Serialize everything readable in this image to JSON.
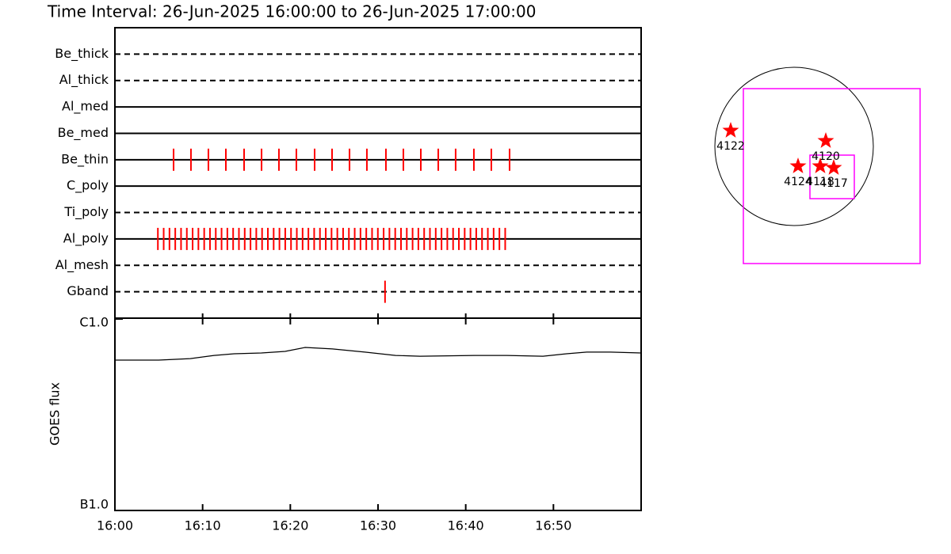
{
  "chart_data": [
    {
      "type": "timeline",
      "title": "Time Interval: 26-Jun-2025 16:00:00 to 26-Jun-2025 17:00:00",
      "xlim": [
        0,
        60
      ],
      "series": [
        {
          "name": "Be_thick",
          "line": "dashed",
          "color": "#ff0000",
          "x": []
        },
        {
          "name": "Al_thick",
          "line": "dashed",
          "color": "#ff0000",
          "x": []
        },
        {
          "name": "Al_med",
          "line": "solid",
          "color": "#ff0000",
          "x": []
        },
        {
          "name": "Be_med",
          "line": "solid",
          "color": "#ff0000",
          "x": []
        },
        {
          "name": "Be_thin",
          "line": "solid",
          "color": "#ff0000",
          "x": [
            6.69,
            8.67,
            10.66,
            12.65,
            14.73,
            16.72,
            18.7,
            20.69,
            22.77,
            24.76,
            26.75,
            28.73,
            30.9,
            32.89,
            34.88,
            36.87,
            38.85,
            40.93,
            42.92,
            45.0
          ]
        },
        {
          "name": "C_poly",
          "line": "solid",
          "color": "#ff0000",
          "x": []
        },
        {
          "name": "Ti_poly",
          "line": "dashed",
          "color": "#ff0000",
          "x": []
        },
        {
          "name": "Al_poly",
          "line": "solid",
          "color": "#ff0000",
          "x": [
            4.9,
            5.56,
            6.22,
            6.88,
            7.54,
            8.2,
            8.86,
            9.52,
            10.18,
            10.84,
            11.5,
            12.16,
            12.82,
            13.48,
            14.14,
            14.8,
            15.46,
            16.12,
            16.78,
            17.44,
            18.1,
            18.76,
            19.42,
            20.08,
            20.74,
            21.4,
            22.06,
            22.72,
            23.38,
            24.04,
            24.7,
            25.36,
            26.02,
            26.68,
            27.34,
            28.0,
            28.66,
            29.32,
            29.98,
            30.64,
            31.3,
            31.96,
            32.62,
            33.28,
            33.94,
            34.6,
            35.26,
            35.92,
            36.58,
            37.24,
            37.9,
            38.56,
            39.22,
            39.88,
            40.54,
            41.2,
            41.86,
            42.52,
            43.18,
            43.84,
            44.5
          ]
        },
        {
          "name": "Al_mesh",
          "line": "dashed",
          "color": "#ff0000",
          "x": []
        },
        {
          "name": "Gband",
          "line": "dashed",
          "color": "#ff0000",
          "x": [
            30.8
          ]
        }
      ]
    },
    {
      "type": "line",
      "ylabel": "GOES flux",
      "log": true,
      "xlim": [
        0,
        60
      ],
      "xticks": [
        {
          "value": 0,
          "label": "16:00"
        },
        {
          "value": 10,
          "label": "16:10"
        },
        {
          "value": 20,
          "label": "16:20"
        },
        {
          "value": 30,
          "label": "16:30"
        },
        {
          "value": 40,
          "label": "16:40"
        },
        {
          "value": 50,
          "label": "16:50"
        }
      ],
      "ylim": [
        1e-07,
        1e-06
      ],
      "yticks": [
        {
          "value": 1e-07,
          "label": "B1.0"
        },
        {
          "value": 1e-06,
          "label": "C1.0"
        }
      ],
      "color": "#000000",
      "x": [
        0,
        5,
        8.6,
        11.3,
        13.6,
        16.7,
        19.4,
        21.7,
        24.8,
        28.5,
        32,
        34.8,
        41,
        44.7,
        48.8,
        51.5,
        53.8,
        56.5,
        60
      ],
      "values": [
        6.1e-07,
        6.1e-07,
        6.21e-07,
        6.45e-07,
        6.58e-07,
        6.64e-07,
        6.77e-07,
        7.1e-07,
        6.97e-07,
        6.71e-07,
        6.45e-07,
        6.39e-07,
        6.45e-07,
        6.45e-07,
        6.39e-07,
        6.58e-07,
        6.71e-07,
        6.71e-07,
        6.64e-07
      ]
    },
    {
      "type": "scatter",
      "color": "#ff0000",
      "box_color": "#ff00ff",
      "labels": [
        "4122",
        "4120",
        "4124",
        "4118",
        "4117"
      ],
      "x": [
        -0.8,
        0.4,
        0.05,
        0.33,
        0.5
      ],
      "values": [
        0.2,
        0.07,
        -0.25,
        -0.25,
        -0.27
      ],
      "boxes": [
        {
          "x": [
            -0.64,
            1.59
          ],
          "y": [
            0.73,
            -1.48
          ]
        },
        {
          "x": [
            0.2,
            0.76
          ],
          "y": [
            -0.11,
            -0.66
          ]
        }
      ]
    }
  ]
}
